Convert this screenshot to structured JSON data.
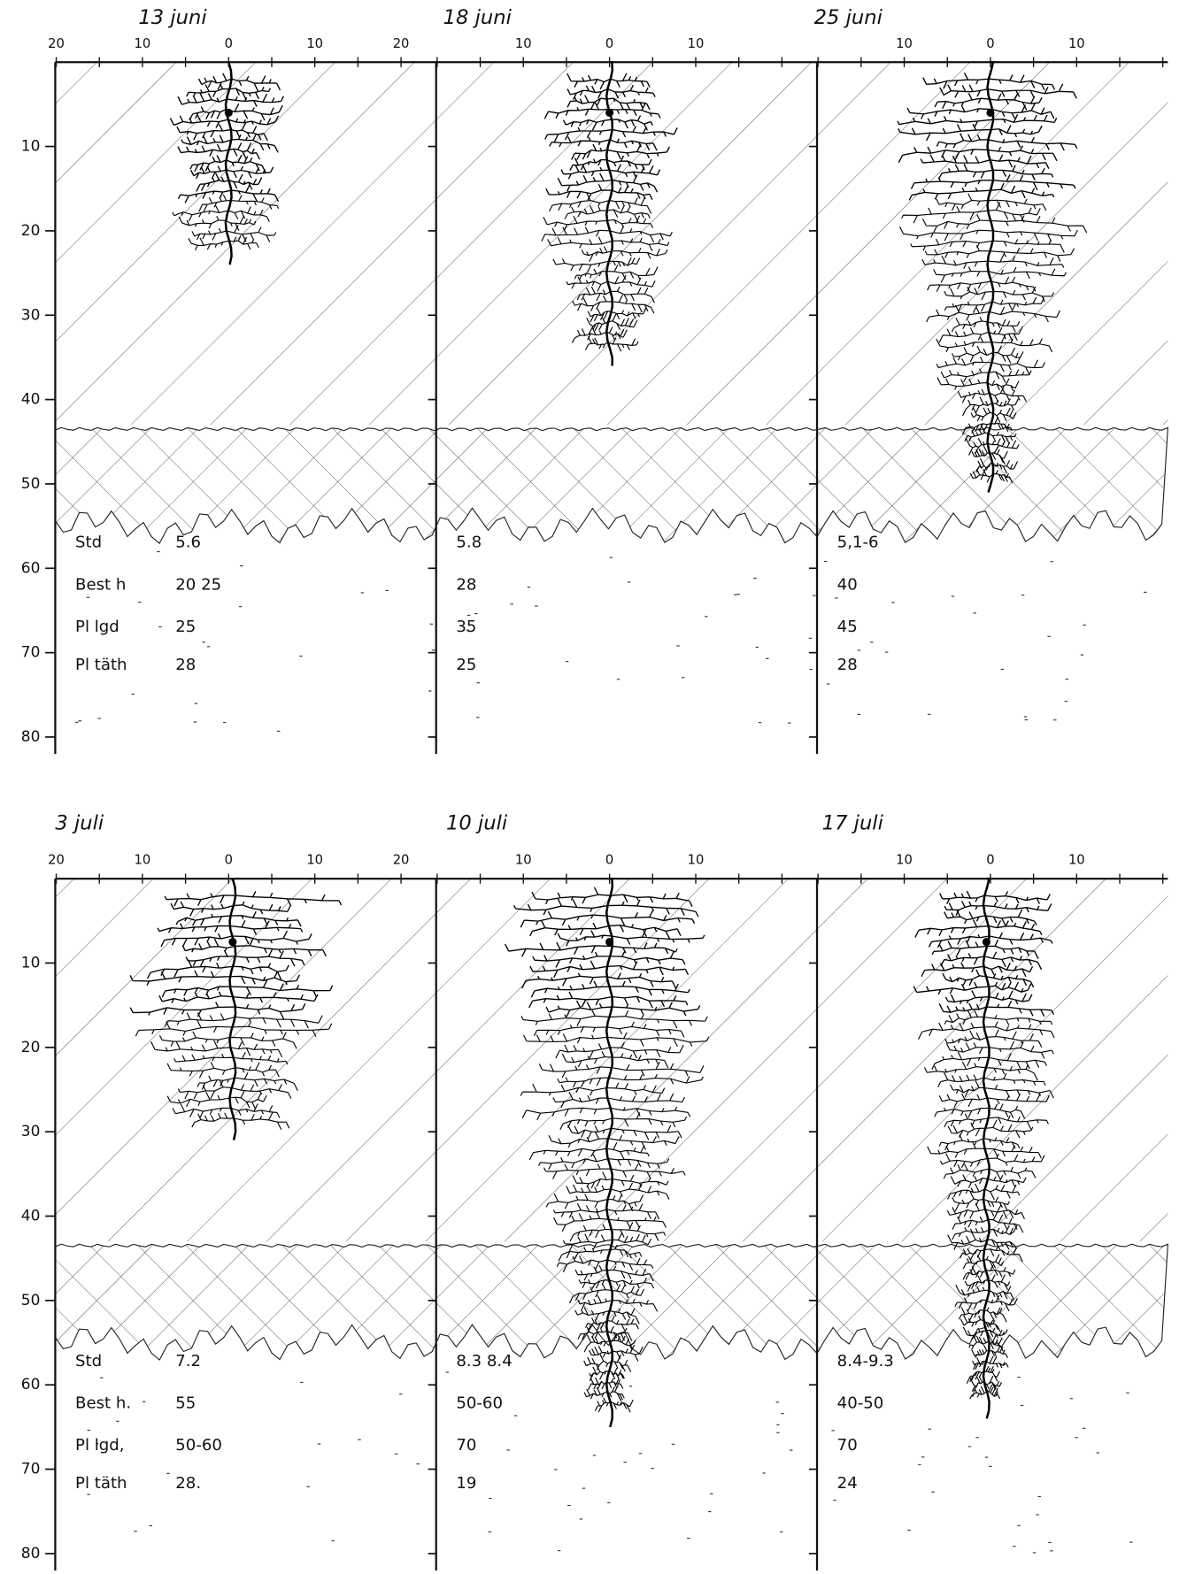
{
  "y_ticks": [
    10,
    20,
    30,
    40,
    50,
    60,
    70,
    80
  ],
  "rows": [
    {
      "labels": [
        "Std",
        "Best h",
        "Pl lgd",
        "Pl täth"
      ],
      "panels": [
        {
          "date": "13 juni",
          "x_ticks": [
            "20",
            "10",
            "0",
            "10",
            "20"
          ],
          "values": [
            "5.6",
            "20 25",
            "25",
            "28"
          ]
        },
        {
          "date": "18 juni",
          "x_ticks": [
            "10",
            "0",
            "10"
          ],
          "values": [
            "5.8",
            "28",
            "35",
            "25"
          ]
        },
        {
          "date": "25 juni",
          "x_ticks": [
            "10",
            "0",
            "10"
          ],
          "values": [
            "5,1-6",
            "40",
            "45",
            "28"
          ]
        }
      ]
    },
    {
      "labels": [
        "Std",
        "Best h.",
        "Pl lgd,",
        "Pl täth"
      ],
      "panels": [
        {
          "date": "3 juli",
          "x_ticks": [
            "20",
            "10",
            "0",
            "10",
            "20"
          ],
          "values": [
            "7.2",
            "55",
            "50-60",
            "28."
          ]
        },
        {
          "date": "10 juli",
          "x_ticks": [
            "10",
            "0",
            "10"
          ],
          "values": [
            "8.3 8.4",
            "50-60",
            "70",
            "19"
          ]
        },
        {
          "date": "17 juli",
          "x_ticks": [
            "10",
            "0",
            "10"
          ],
          "values": [
            "8.4-9.3",
            "40-50",
            "70",
            "24"
          ]
        }
      ]
    }
  ]
}
